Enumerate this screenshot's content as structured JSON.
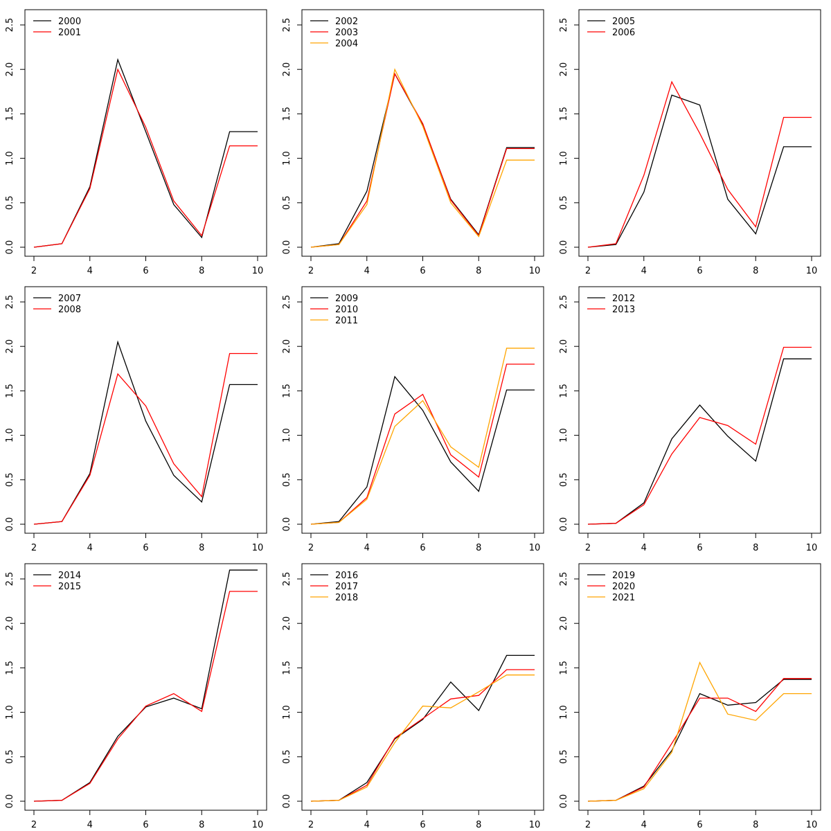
{
  "chart_data": [
    {
      "type": "line",
      "xlim": [
        2,
        10
      ],
      "ylim": [
        0,
        2.6
      ],
      "xticks": [
        "2",
        "4",
        "6",
        "8",
        "10"
      ],
      "yticks": [
        "0.0",
        "0.5",
        "1.0",
        "1.5",
        "2.0",
        "2.5"
      ],
      "x": [
        2,
        3,
        4,
        5,
        6,
        7,
        8,
        9,
        10
      ],
      "legend_position": "top-left",
      "series": [
        {
          "name": "2000",
          "color": "#000000",
          "values": [
            0,
            0.04,
            0.68,
            2.11,
            1.3,
            0.48,
            0.11,
            1.3,
            1.3
          ]
        },
        {
          "name": "2001",
          "color": "#ff0000",
          "values": [
            0,
            0.04,
            0.66,
            2.0,
            1.35,
            0.52,
            0.13,
            1.14,
            1.14
          ]
        }
      ]
    },
    {
      "type": "line",
      "xlim": [
        2,
        10
      ],
      "ylim": [
        0,
        2.6
      ],
      "xticks": [
        "2",
        "4",
        "6",
        "8",
        "10"
      ],
      "yticks": [
        "0.0",
        "0.5",
        "1.0",
        "1.5",
        "2.0",
        "2.5"
      ],
      "x": [
        2,
        3,
        4,
        5,
        6,
        7,
        8,
        9,
        10
      ],
      "legend_position": "top-left",
      "series": [
        {
          "name": "2002",
          "color": "#000000",
          "values": [
            0,
            0.04,
            0.63,
            1.95,
            1.38,
            0.54,
            0.14,
            1.12,
            1.12
          ]
        },
        {
          "name": "2003",
          "color": "#ff0000",
          "values": [
            0,
            0.03,
            0.52,
            1.95,
            1.39,
            0.53,
            0.13,
            1.11,
            1.11
          ]
        },
        {
          "name": "2004",
          "color": "#ffa500",
          "values": [
            0,
            0.03,
            0.48,
            2.0,
            1.36,
            0.5,
            0.12,
            0.98,
            0.98
          ]
        }
      ]
    },
    {
      "type": "line",
      "xlim": [
        2,
        10
      ],
      "ylim": [
        0,
        2.6
      ],
      "xticks": [
        "2",
        "4",
        "6",
        "8",
        "10"
      ],
      "yticks": [
        "0.0",
        "0.5",
        "1.0",
        "1.5",
        "2.0",
        "2.5"
      ],
      "x": [
        2,
        3,
        4,
        5,
        6,
        7,
        8,
        9,
        10
      ],
      "legend_position": "top-left",
      "series": [
        {
          "name": "2005",
          "color": "#000000",
          "values": [
            0,
            0.03,
            0.62,
            1.71,
            1.6,
            0.54,
            0.15,
            1.13,
            1.13
          ]
        },
        {
          "name": "2006",
          "color": "#ff0000",
          "values": [
            0,
            0.04,
            0.81,
            1.86,
            1.28,
            0.65,
            0.23,
            1.46,
            1.46
          ]
        }
      ]
    },
    {
      "type": "line",
      "xlim": [
        2,
        10
      ],
      "ylim": [
        0,
        2.6
      ],
      "xticks": [
        "2",
        "4",
        "6",
        "8",
        "10"
      ],
      "yticks": [
        "0.0",
        "0.5",
        "1.0",
        "1.5",
        "2.0",
        "2.5"
      ],
      "x": [
        2,
        3,
        4,
        5,
        6,
        7,
        8,
        9,
        10
      ],
      "legend_position": "top-left",
      "series": [
        {
          "name": "2007",
          "color": "#000000",
          "values": [
            0,
            0.03,
            0.57,
            2.05,
            1.16,
            0.55,
            0.25,
            1.57,
            1.57
          ]
        },
        {
          "name": "2008",
          "color": "#ff0000",
          "values": [
            0,
            0.03,
            0.55,
            1.69,
            1.33,
            0.68,
            0.31,
            1.92,
            1.92
          ]
        }
      ]
    },
    {
      "type": "line",
      "xlim": [
        2,
        10
      ],
      "ylim": [
        0,
        2.6
      ],
      "xticks": [
        "2",
        "4",
        "6",
        "8",
        "10"
      ],
      "yticks": [
        "0.0",
        "0.5",
        "1.0",
        "1.5",
        "2.0",
        "2.5"
      ],
      "x": [
        2,
        3,
        4,
        5,
        6,
        7,
        8,
        9,
        10
      ],
      "legend_position": "top-left",
      "series": [
        {
          "name": "2009",
          "color": "#000000",
          "values": [
            0,
            0.03,
            0.42,
            1.66,
            1.28,
            0.7,
            0.37,
            1.51,
            1.51
          ]
        },
        {
          "name": "2010",
          "color": "#ff0000",
          "values": [
            0,
            0.02,
            0.3,
            1.24,
            1.46,
            0.78,
            0.53,
            1.8,
            1.8
          ]
        },
        {
          "name": "2011",
          "color": "#ffa500",
          "values": [
            0,
            0.02,
            0.28,
            1.1,
            1.39,
            0.87,
            0.64,
            1.98,
            1.98
          ]
        }
      ]
    },
    {
      "type": "line",
      "xlim": [
        2,
        10
      ],
      "ylim": [
        0,
        2.6
      ],
      "xticks": [
        "2",
        "4",
        "6",
        "8",
        "10"
      ],
      "yticks": [
        "0.0",
        "0.5",
        "1.0",
        "1.5",
        "2.0",
        "2.5"
      ],
      "x": [
        2,
        3,
        4,
        5,
        6,
        7,
        8,
        9,
        10
      ],
      "legend_position": "top-left",
      "series": [
        {
          "name": "2012",
          "color": "#000000",
          "values": [
            0,
            0.01,
            0.24,
            0.96,
            1.34,
            0.99,
            0.71,
            1.86,
            1.86
          ]
        },
        {
          "name": "2013",
          "color": "#ff0000",
          "values": [
            0,
            0.01,
            0.22,
            0.79,
            1.2,
            1.11,
            0.9,
            1.99,
            1.99
          ]
        }
      ]
    },
    {
      "type": "line",
      "xlim": [
        2,
        10
      ],
      "ylim": [
        0,
        2.6
      ],
      "xticks": [
        "2",
        "4",
        "6",
        "8",
        "10"
      ],
      "yticks": [
        "0.0",
        "0.5",
        "1.0",
        "1.5",
        "2.0",
        "2.5"
      ],
      "x": [
        2,
        3,
        4,
        5,
        6,
        7,
        8,
        9,
        10
      ],
      "legend_position": "top-left",
      "series": [
        {
          "name": "2014",
          "color": "#000000",
          "values": [
            0,
            0.01,
            0.21,
            0.73,
            1.06,
            1.16,
            1.04,
            2.6,
            2.6
          ]
        },
        {
          "name": "2015",
          "color": "#ff0000",
          "values": [
            0,
            0.01,
            0.2,
            0.7,
            1.07,
            1.21,
            1.01,
            2.36,
            2.36
          ]
        }
      ]
    },
    {
      "type": "line",
      "xlim": [
        2,
        10
      ],
      "ylim": [
        0,
        2.6
      ],
      "xticks": [
        "2",
        "4",
        "6",
        "8",
        "10"
      ],
      "yticks": [
        "0.0",
        "0.5",
        "1.0",
        "1.5",
        "2.0",
        "2.5"
      ],
      "x": [
        2,
        3,
        4,
        5,
        6,
        7,
        8,
        9,
        10
      ],
      "legend_position": "top-left",
      "series": [
        {
          "name": "2016",
          "color": "#000000",
          "values": [
            0,
            0.01,
            0.21,
            0.7,
            0.92,
            1.34,
            1.02,
            1.64,
            1.64
          ]
        },
        {
          "name": "2017",
          "color": "#ff0000",
          "values": [
            0,
            0.01,
            0.18,
            0.71,
            0.93,
            1.15,
            1.19,
            1.48,
            1.48
          ]
        },
        {
          "name": "2018",
          "color": "#ffa500",
          "values": [
            0,
            0.01,
            0.16,
            0.66,
            1.07,
            1.05,
            1.23,
            1.42,
            1.42
          ]
        }
      ]
    },
    {
      "type": "line",
      "xlim": [
        2,
        10
      ],
      "ylim": [
        0,
        2.6
      ],
      "xticks": [
        "2",
        "4",
        "6",
        "8",
        "10"
      ],
      "yticks": [
        "0.0",
        "0.5",
        "1.0",
        "1.5",
        "2.0",
        "2.5"
      ],
      "x": [
        2,
        3,
        4,
        5,
        6,
        7,
        8,
        9,
        10
      ],
      "legend_position": "top-left",
      "series": [
        {
          "name": "2019",
          "color": "#000000",
          "values": [
            0,
            0.01,
            0.17,
            0.57,
            1.21,
            1.08,
            1.11,
            1.37,
            1.37
          ]
        },
        {
          "name": "2020",
          "color": "#ff0000",
          "values": [
            0,
            0.01,
            0.16,
            0.65,
            1.16,
            1.16,
            1.01,
            1.38,
            1.38
          ]
        },
        {
          "name": "2021",
          "color": "#ffa500",
          "values": [
            0,
            0.01,
            0.14,
            0.55,
            1.56,
            0.98,
            0.91,
            1.21,
            1.21
          ]
        }
      ]
    }
  ]
}
